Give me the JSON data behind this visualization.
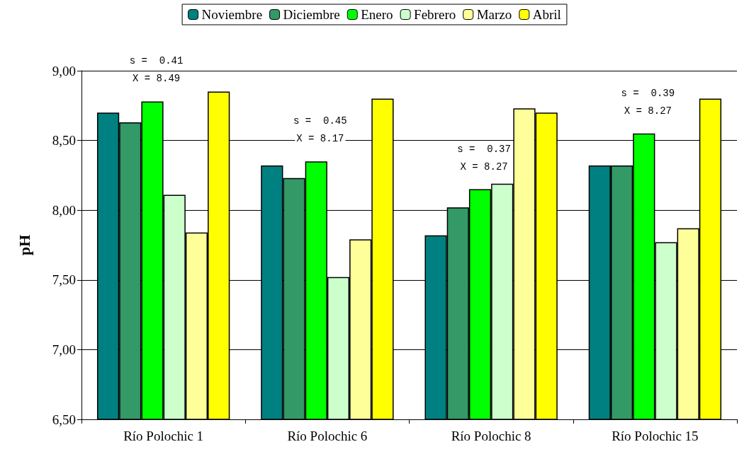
{
  "chart_data": {
    "type": "bar",
    "ylabel": "pH",
    "categories": [
      "Río Polochic 1",
      "Río Polochic 6",
      "Río Polochic 8",
      "Río Polochic 15"
    ],
    "series": [
      {
        "name": "Noviembre",
        "color": "#008080",
        "values": [
          8.7,
          8.32,
          7.82,
          8.32
        ]
      },
      {
        "name": "Diciembre",
        "color": "#339966",
        "values": [
          8.63,
          8.23,
          8.02,
          8.32
        ]
      },
      {
        "name": "Enero",
        "color": "#00ff00",
        "values": [
          8.78,
          8.35,
          8.15,
          8.55
        ]
      },
      {
        "name": "Febrero",
        "color": "#ccffcc",
        "values": [
          8.11,
          7.52,
          8.19,
          7.77
        ]
      },
      {
        "name": "Marzo",
        "color": "#ffff99",
        "values": [
          7.84,
          7.79,
          8.73,
          7.87
        ]
      },
      {
        "name": "Abril",
        "color": "#ffff00",
        "values": [
          8.85,
          8.8,
          8.7,
          8.8
        ]
      }
    ],
    "ylim": [
      6.5,
      9
    ],
    "yticks": [
      {
        "value": 6.5,
        "label": "6,50"
      },
      {
        "value": 7,
        "label": "7,00"
      },
      {
        "value": 7.5,
        "label": "7,50"
      },
      {
        "value": 8,
        "label": "8,00"
      },
      {
        "value": 8.5,
        "label": "8,50"
      },
      {
        "value": 9,
        "label": "9,00"
      }
    ],
    "grid": "y",
    "legend": "top",
    "annotations": [
      "s =  0.41",
      "X = 8.49",
      "s =  0.45",
      "X = 8.17",
      "s =  0.37",
      "X = 8.27",
      "s =  0.39",
      "X = 8.27"
    ]
  }
}
